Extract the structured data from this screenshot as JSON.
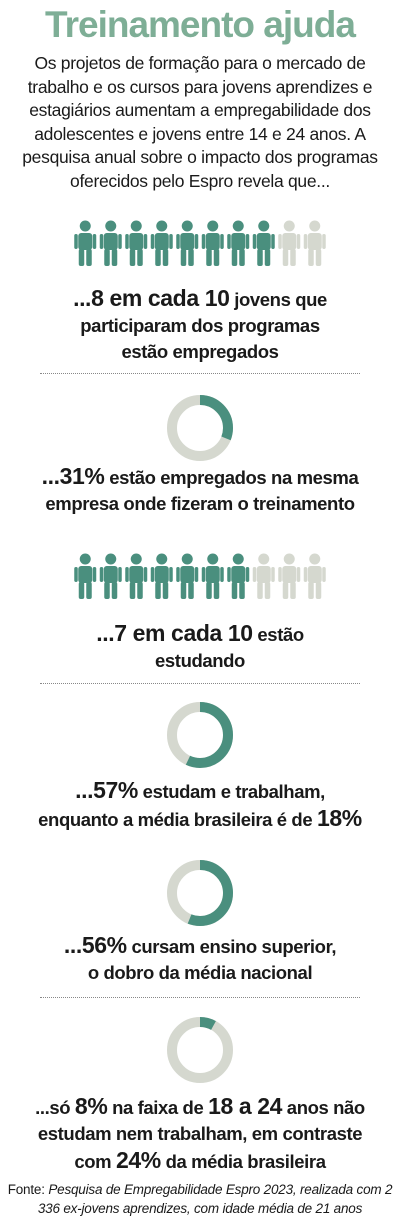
{
  "title": "Treinamento ajuda",
  "intro": "Os projetos de formação para o mercado de trabalho e os cursos para jovens aprendizes e estagiários aumentam a empregabilidade dos adolescentes e jovens entre 14 e 24 anos. A pesquisa anual sobre o impacto dos programas oferecidos pelo Espro revela que...",
  "colors": {
    "accent": "#4a8f7e",
    "muted": "#d5d8cf",
    "title": "#7eae96"
  },
  "items": [
    {
      "type": "pictogram",
      "divider": true,
      "lines": [
        [
          {
            "text": "...",
            "bold": true
          },
          {
            "number": 8,
            "bold": true
          },
          {
            "text": " em cada ",
            "bold": true
          },
          {
            "number": 10,
            "bold": true
          },
          {
            "text": " jovens que"
          }
        ],
        [
          {
            "text": "participaram dos programas"
          }
        ],
        [
          {
            "text": "estão empregados"
          }
        ]
      ]
    },
    {
      "type": "donut",
      "lines": [
        [
          {
            "text": "...",
            "bold": true
          },
          {
            "number": 31,
            "label": "31%",
            "bold": true
          },
          {
            "text": " estão empregados na mesma"
          }
        ],
        [
          {
            "text": "empresa onde fizeram o treinamento"
          }
        ]
      ]
    },
    {
      "type": "pictogram",
      "divider": true,
      "lines": [
        [
          {
            "text": "...",
            "bold": true
          },
          {
            "number": 7,
            "bold": true
          },
          {
            "text": " em cada ",
            "bold": true
          },
          {
            "number": 10,
            "bold": true
          },
          {
            "text": " estão"
          }
        ],
        [
          {
            "text": "estudando"
          }
        ]
      ]
    },
    {
      "type": "donut",
      "lines": [
        [
          {
            "text": "...",
            "bold": true
          },
          {
            "number": 57,
            "label": "57%",
            "bold": true
          },
          {
            "text": " estudam e trabalham,"
          }
        ],
        [
          {
            "text": "enquanto a média brasileira é de "
          },
          {
            "number": 18,
            "label": "18%",
            "bold": true
          }
        ]
      ]
    },
    {
      "type": "donut",
      "divider": true,
      "lines": [
        [
          {
            "text": "...",
            "bold": true
          },
          {
            "number": 56,
            "label": "56%",
            "bold": true
          },
          {
            "text": " cursam ensino superior,"
          }
        ],
        [
          {
            "text": "o dobro da média nacional"
          }
        ]
      ]
    },
    {
      "type": "donut",
      "lines": [
        [
          {
            "text": "...só "
          },
          {
            "number": 8,
            "label": "8%",
            "bold": true
          },
          {
            "text": " na faixa de "
          },
          {
            "number": 18,
            "bold": true
          },
          {
            "text": " a ",
            "bold": true
          },
          {
            "number": 24,
            "bold": true
          },
          {
            "text": " anos não"
          }
        ],
        [
          {
            "text": "estudam nem trabalham, em contraste"
          }
        ],
        [
          {
            "text": "com "
          },
          {
            "number": 24,
            "label": "24%",
            "bold": true
          },
          {
            "text": " da média brasileira"
          }
        ]
      ]
    }
  ],
  "source": {
    "label": "Fonte: ",
    "text": "Pesquisa de Empregabilidade Espro 2023, realizada com 2 336 ex-jovens aprendizes, com idade média de 21 anos"
  }
}
